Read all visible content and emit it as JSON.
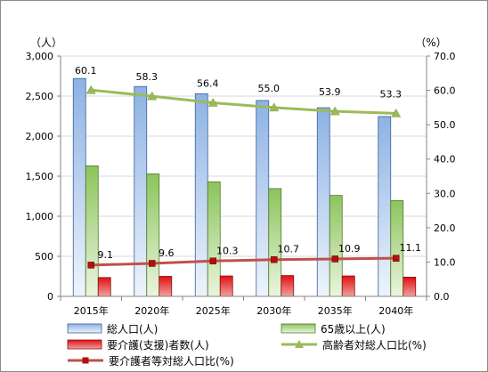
{
  "chart_data": {
    "type": "bar",
    "categories": [
      "2015年",
      "2020年",
      "2025年",
      "2030年",
      "2035年",
      "2040年"
    ],
    "left_axis": {
      "unit": "（人）",
      "range": [
        0,
        3000
      ],
      "ticks": [
        "0",
        "500",
        "1,000",
        "1,500",
        "2,000",
        "2,500",
        "3,000"
      ]
    },
    "right_axis": {
      "unit": "（%）",
      "range": [
        0,
        70
      ],
      "ticks": [
        "0.0",
        "10.0",
        "20.0",
        "30.0",
        "40.0",
        "50.0",
        "60.0",
        "70.0"
      ]
    },
    "grid": true,
    "legend_position": "bottom",
    "series": [
      {
        "name": "総人口(人)",
        "kind": "bar",
        "axis": "left",
        "color": "#9dbde8",
        "values": [
          2720,
          2620,
          2530,
          2445,
          2355,
          2245
        ]
      },
      {
        "name": "65歳以上(人)",
        "kind": "bar",
        "axis": "left",
        "color": "#9acd6a",
        "values": [
          1630,
          1530,
          1430,
          1345,
          1260,
          1195
        ]
      },
      {
        "name": "要介護(支援)者数(人)",
        "kind": "bar",
        "axis": "left",
        "color": "#e21c1c",
        "values": [
          235,
          250,
          255,
          260,
          255,
          240
        ]
      },
      {
        "name": "高齢者対総人口比(%)",
        "kind": "line",
        "axis": "right",
        "color": "#9bbb59",
        "values": [
          60.1,
          58.3,
          56.4,
          55.0,
          53.9,
          53.3
        ],
        "labels": [
          "60.1",
          "58.3",
          "56.4",
          "55.0",
          "53.9",
          "53.3"
        ]
      },
      {
        "name": "要介護者等対総人口比(%)",
        "kind": "line",
        "axis": "right",
        "color": "#c0504d",
        "values": [
          9.1,
          9.6,
          10.3,
          10.7,
          10.9,
          11.1
        ],
        "labels": [
          "9.1",
          "9.6",
          "10.3",
          "10.7",
          "10.9",
          "11.1"
        ]
      }
    ]
  }
}
